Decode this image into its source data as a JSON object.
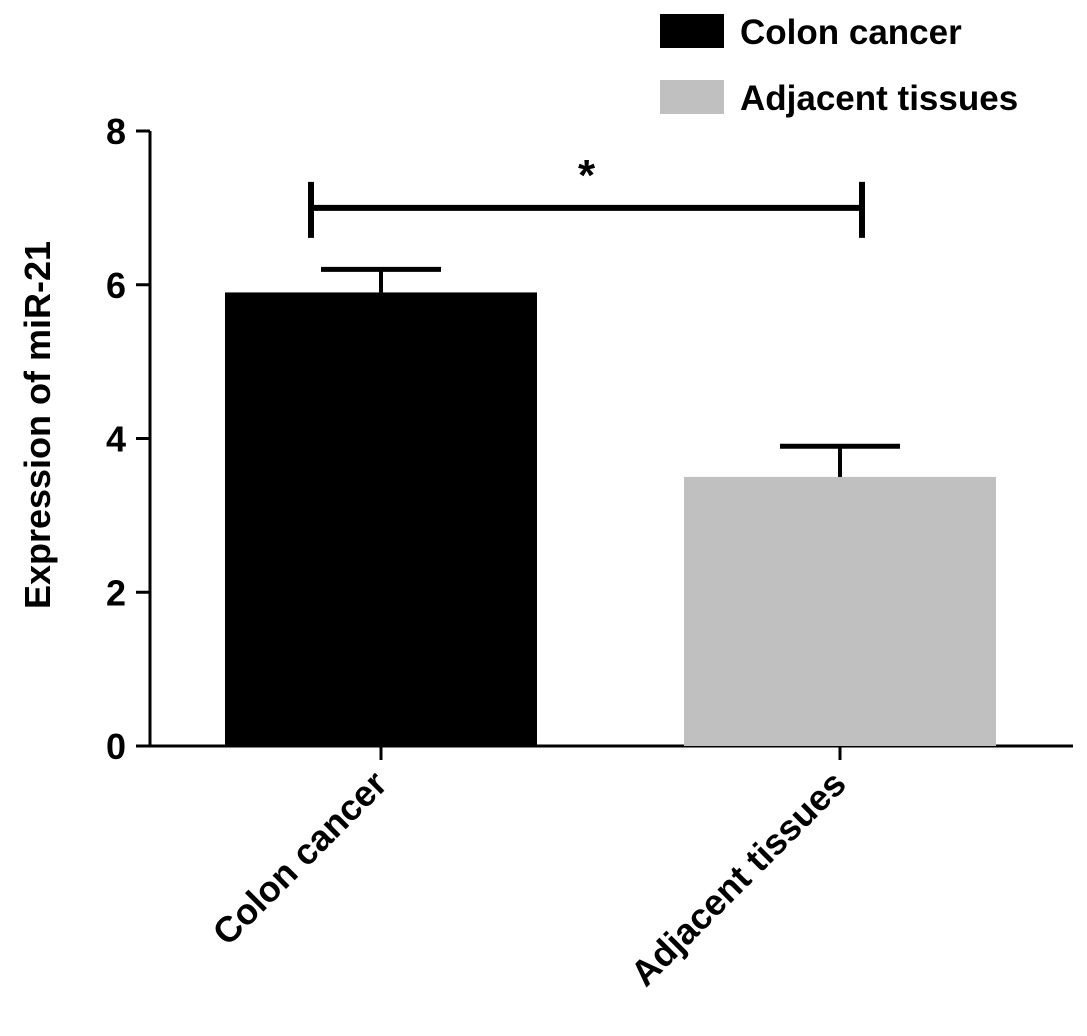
{
  "chart_data": {
    "type": "bar",
    "categories": [
      "Colon cancer",
      "Adjacent tissues"
    ],
    "values": [
      5.9,
      3.5
    ],
    "error": [
      0.3,
      0.4
    ],
    "colors": [
      "#000000",
      "#c0c0c0"
    ],
    "ylabel": "Expression of miR-21",
    "xlabel": "",
    "ylim": [
      0,
      8
    ],
    "yticks": [
      "0",
      "2",
      "4",
      "6",
      "8"
    ],
    "legend": {
      "position": "top-right",
      "entries": [
        {
          "label": "Colon cancer",
          "color": "#000000"
        },
        {
          "label": "Adjacent tissues",
          "color": "#c0c0c0"
        }
      ]
    },
    "significance": {
      "text": "*",
      "between": [
        "Colon cancer",
        "Adjacent tissues"
      ],
      "y": 7.0
    },
    "grid": false
  }
}
